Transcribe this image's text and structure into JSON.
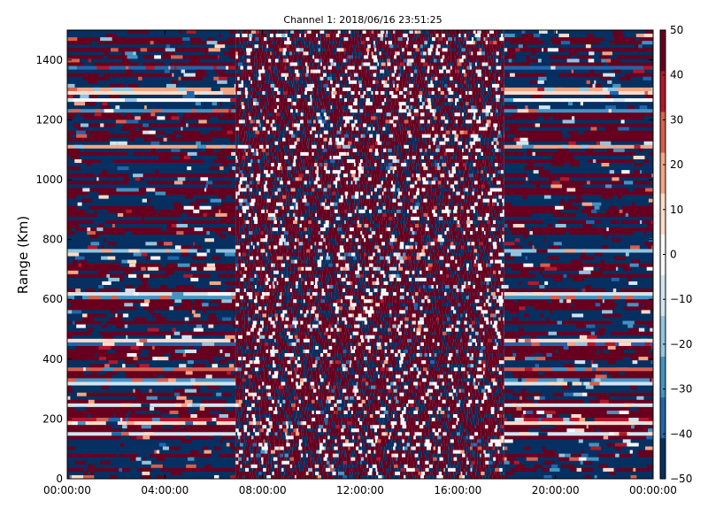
{
  "chart_data": {
    "type": "heatmap",
    "title": "Channel 1: 2018/06/16 23:51:25",
    "ylabel": "Range (Km)",
    "xlabel": "",
    "x_tick_labels": [
      "00:00:00",
      "04:00:00",
      "08:00:00",
      "12:00:00",
      "16:00:00",
      "20:00:00",
      "00:00:00"
    ],
    "x_range_hours": [
      0,
      24
    ],
    "y_ticks": [
      0,
      200,
      400,
      600,
      800,
      1000,
      1200,
      1400
    ],
    "ylim": [
      0,
      1500
    ],
    "colorbar": {
      "ticks": [
        50,
        40,
        30,
        20,
        10,
        0,
        -10,
        -20,
        -30,
        -40,
        -50
      ],
      "range": [
        -50,
        50
      ],
      "colormap": "RdBu_r",
      "colors": [
        "#053061",
        "#2166ac",
        "#4393c3",
        "#92c5de",
        "#d1e5f0",
        "#f7f7f7",
        "#fddbc7",
        "#f4a582",
        "#d6604d",
        "#b2182b",
        "#67001f"
      ]
    },
    "time_segments": [
      {
        "start_hour": 0,
        "end_hour": 6.9,
        "pattern": "horizontal_banded"
      },
      {
        "start_hour": 6.9,
        "end_hour": 17.9,
        "pattern": "speckled_mostly_positive"
      },
      {
        "start_hour": 17.9,
        "end_hour": 24,
        "pattern": "horizontal_banded"
      }
    ],
    "grid": false,
    "legend": "colorbar-right"
  }
}
